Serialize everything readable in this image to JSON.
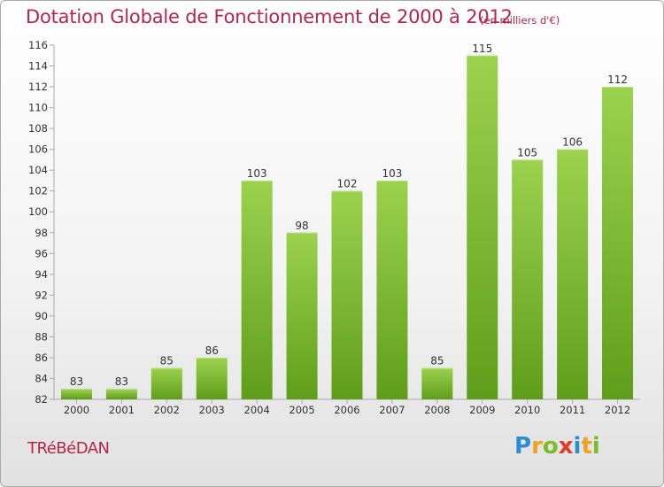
{
  "title": "Dotation Globale de Fonctionnement de 2000 à 2012",
  "unit": "(en milliers d'€)",
  "commune": "TRéBéDAN",
  "logo": {
    "letters": [
      "P",
      "r",
      "o",
      "x",
      "i",
      "t",
      "i"
    ],
    "colors": [
      "#2a8fd1",
      "#f0a21c",
      "#7cbd2a",
      "#e23c2c",
      "#2a8fd1",
      "#f0a21c",
      "#7cbd2a"
    ]
  },
  "colors": {
    "bar_top": "#9bd24e",
    "bar_bottom": "#5f9e1a",
    "text": "#b5254d",
    "axis": "#a9a9a9"
  },
  "chart_data": {
    "type": "bar",
    "categories": [
      "2000",
      "2001",
      "2002",
      "2003",
      "2004",
      "2005",
      "2006",
      "2007",
      "2008",
      "2009",
      "2010",
      "2011",
      "2012"
    ],
    "values": [
      83,
      83,
      85,
      86,
      103,
      98,
      102,
      103,
      85,
      115,
      105,
      106,
      112
    ],
    "ylim": [
      82,
      116
    ],
    "yticks": [
      82,
      84,
      86,
      88,
      90,
      92,
      94,
      96,
      98,
      100,
      102,
      104,
      106,
      108,
      110,
      112,
      114,
      116
    ],
    "grid": false,
    "xlabel": "",
    "ylabel": ""
  }
}
